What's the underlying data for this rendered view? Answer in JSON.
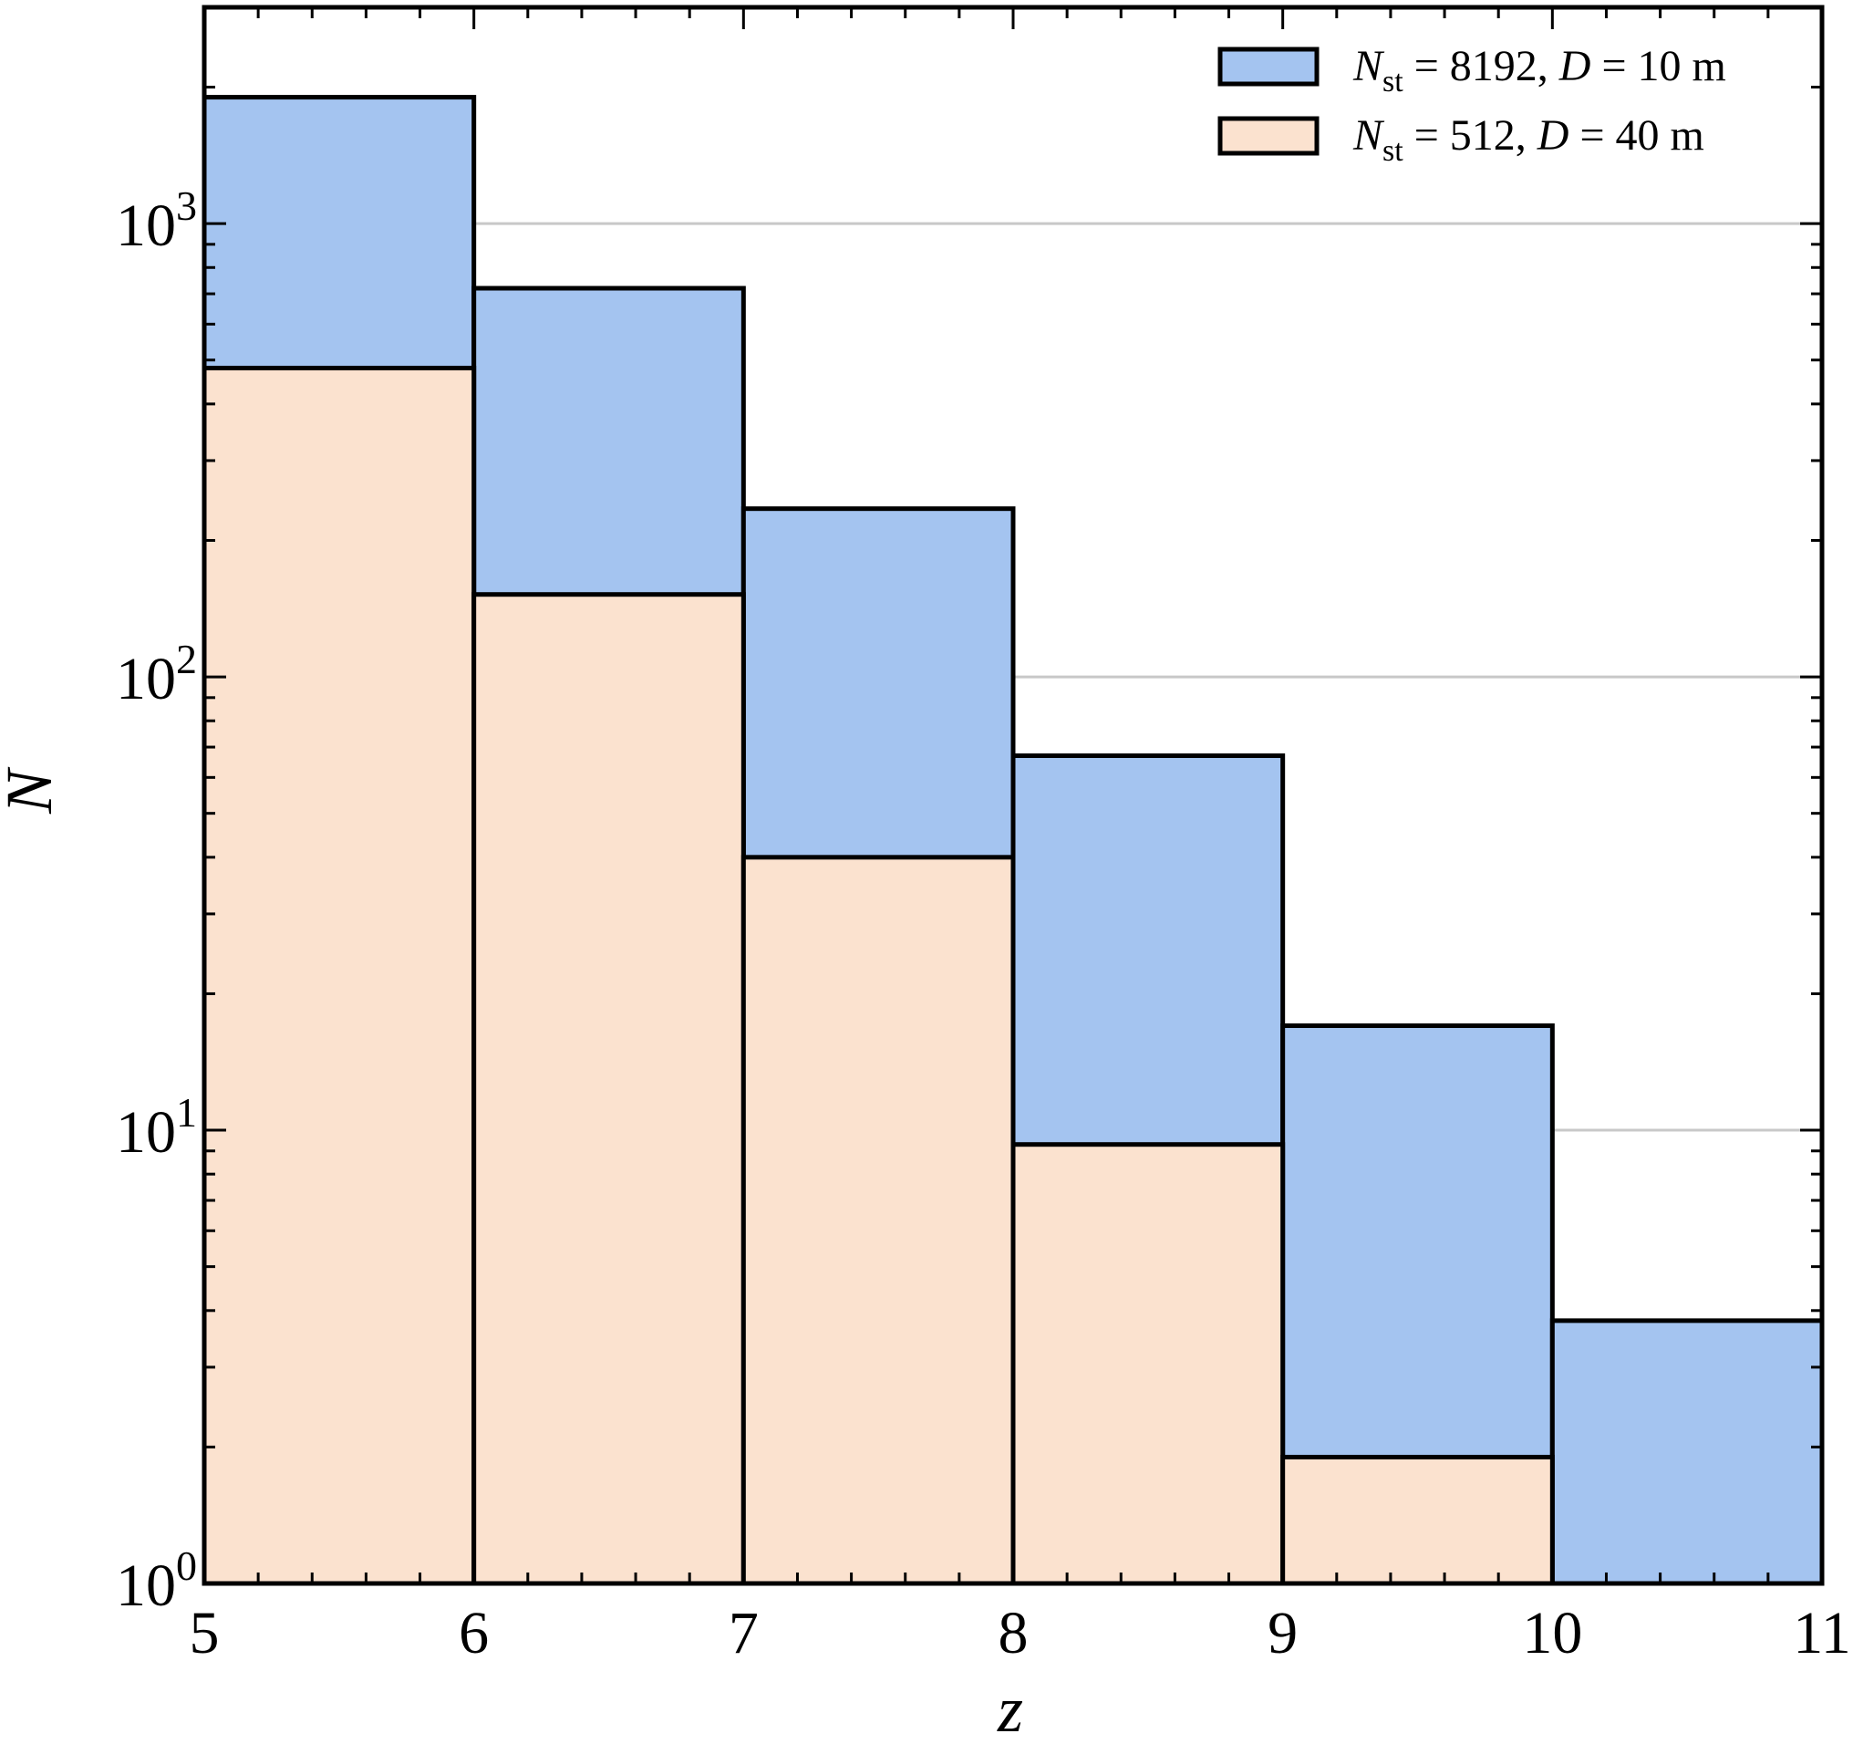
{
  "chart_data": {
    "type": "bar",
    "subtype": "overlaid-histogram",
    "title": "",
    "xlabel": "z",
    "ylabel": "N",
    "yscale": "log",
    "xlim": [
      5,
      11
    ],
    "ylim": [
      1,
      3000
    ],
    "grid": "horizontal major gridlines at decades",
    "legend_position": "top-right",
    "bin_edges": [
      5,
      6,
      7,
      8,
      9,
      10,
      11
    ],
    "x_tick_labels": [
      "5",
      "6",
      "7",
      "8",
      "9",
      "10",
      "11"
    ],
    "y_tick_labels": [
      {
        "value": 1,
        "base": "10",
        "exp": "0"
      },
      {
        "value": 10,
        "base": "10",
        "exp": "1"
      },
      {
        "value": 100,
        "base": "10",
        "exp": "2"
      },
      {
        "value": 1000,
        "base": "10",
        "exp": "3"
      }
    ],
    "series": [
      {
        "name": "N_st = 8192, D = 10 m",
        "legend": {
          "sym": "N",
          "sub": "st",
          "mid": " = 8192, ",
          "sym2": "D",
          "rest": " = 10 m"
        },
        "color": "#a4c4f0",
        "values": [
          1900,
          720,
          235,
          67,
          17,
          3.8
        ]
      },
      {
        "name": "N_st = 512, D = 40 m",
        "legend": {
          "sym": "N",
          "sub": "st",
          "mid": " = 512, ",
          "sym2": "D",
          "rest": " = 40 m"
        },
        "color": "#fbe2cf",
        "values": [
          480,
          152,
          40,
          9.3,
          1.9,
          1
        ]
      }
    ]
  }
}
